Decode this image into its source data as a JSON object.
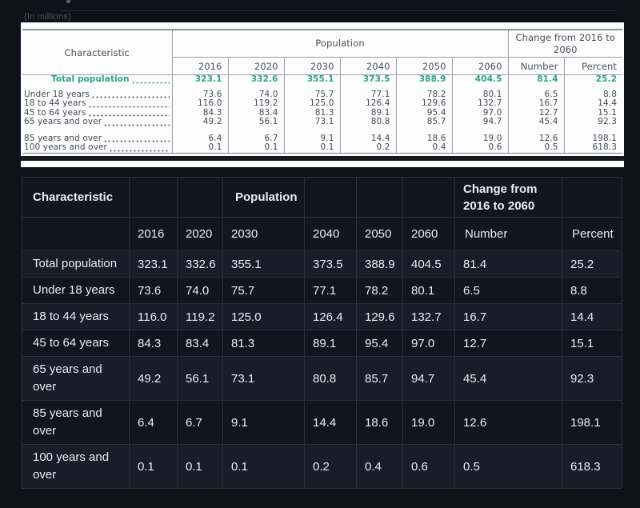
{
  "colors": {
    "page_bg": "#0f1219",
    "accent_teal": "#2ba58b",
    "row_light": "#181d28",
    "row_dark": "#11151e",
    "grid_line": "#2a303c",
    "print_bg": "#fcfcfd",
    "print_text": "#454b52"
  },
  "source": {
    "caption": "(In millions)"
  },
  "shared": {
    "characteristic_label": "Characteristic",
    "population_label": "Population",
    "change_label": "Change from 2016 to 2060",
    "years": [
      "2016",
      "2020",
      "2030",
      "2040",
      "2050",
      "2060"
    ],
    "number_label": "Number",
    "percent_label": "Percent",
    "rows": [
      {
        "label": "Total population",
        "values": [
          "323.1",
          "332.6",
          "355.1",
          "373.5",
          "388.9",
          "404.5",
          "81.4",
          "25.2"
        ]
      },
      {
        "label": "Under 18 years",
        "values": [
          "73.6",
          "74.0",
          "75.7",
          "77.1",
          "78.2",
          "80.1",
          "6.5",
          "8.8"
        ]
      },
      {
        "label": "18 to 44 years",
        "values": [
          "116.0",
          "119.2",
          "125.0",
          "126.4",
          "129.6",
          "132.7",
          "16.7",
          "14.4"
        ]
      },
      {
        "label": "45 to 64 years",
        "values": [
          "84.3",
          "83.4",
          "81.3",
          "89.1",
          "95.4",
          "97.0",
          "12.7",
          "15.1"
        ]
      },
      {
        "label": "65 years and over",
        "values": [
          "49.2",
          "56.1",
          "73.1",
          "80.8",
          "85.7",
          "94.7",
          "45.4",
          "92.3"
        ]
      },
      {
        "label": "85 years and over",
        "values": [
          "6.4",
          "6.7",
          "9.1",
          "14.4",
          "18.6",
          "19.0",
          "12.6",
          "198.1"
        ]
      },
      {
        "label": "100 years and over",
        "values": [
          "0.1",
          "0.1",
          "0.1",
          "0.2",
          "0.4",
          "0.6",
          "0.5",
          "618.3"
        ]
      }
    ]
  }
}
